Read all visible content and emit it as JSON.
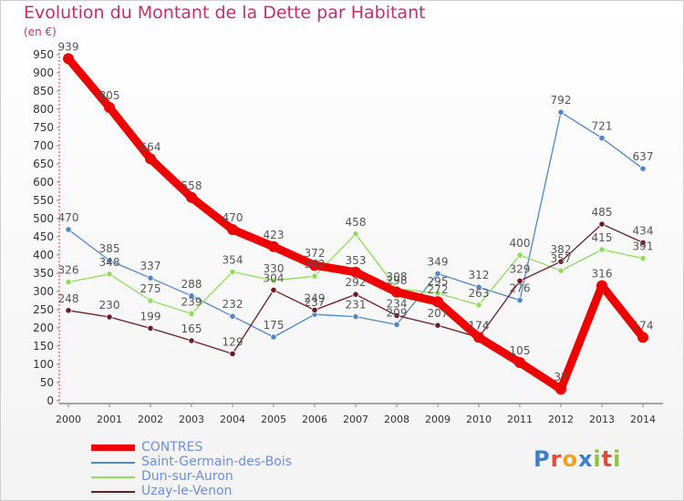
{
  "title": "Evolution du Montant de la Dette par Habitant",
  "unit_label": "(en €)",
  "logo_text": "Proxiti",
  "chart_data": {
    "type": "line",
    "title": "Evolution du Montant de la Dette par Habitant",
    "ylabel": "(en €)",
    "xlabel": "",
    "ylim": [
      0,
      950
    ],
    "grid": false,
    "legend_position": "bottom-left",
    "x": [
      "2000",
      "2001",
      "2002",
      "2003",
      "2004",
      "2005",
      "2006",
      "2007",
      "2008",
      "2009",
      "2010",
      "2011",
      "2012",
      "2013",
      "2014"
    ],
    "y_ticks": [
      "0",
      "50",
      "100",
      "150",
      "200",
      "250",
      "300",
      "350",
      "400",
      "450",
      "500",
      "550",
      "600",
      "650",
      "700",
      "750",
      "800",
      "850",
      "900",
      "950"
    ],
    "series": [
      {
        "name": "CONTRES",
        "color": "#ee0000",
        "values": [
          939,
          805,
          664,
          558,
          470,
          423,
          372,
          353,
          298,
          272,
          174,
          105,
          32,
          316,
          174
        ],
        "labels": [
          "939",
          "805",
          "664",
          "558",
          "470",
          "423",
          "372",
          "353",
          "298",
          "272",
          "174",
          "105",
          "32",
          "316",
          "174"
        ]
      },
      {
        "name": "Saint-Germain-des-Bois",
        "color": "#4f87c8",
        "values": [
          470,
          385,
          337,
          288,
          232,
          175,
          237,
          231,
          209,
          349,
          312,
          276,
          792,
          721,
          637
        ],
        "labels": [
          "470",
          "385",
          "337",
          "288",
          "232",
          "175",
          "237",
          "231",
          "209",
          "349",
          "312",
          "276",
          "792",
          "721",
          "637"
        ]
      },
      {
        "name": "Dun-sur-Auron",
        "color": "#8fdc5a",
        "values": [
          326,
          348,
          275,
          239,
          354,
          330,
          342,
          458,
          308,
          295,
          263,
          400,
          357,
          415,
          391
        ],
        "labels": [
          "326",
          "348",
          "275",
          "239",
          "354",
          "330",
          "342",
          "458",
          "308",
          "295",
          "263",
          "400",
          "357",
          "415",
          "391"
        ]
      },
      {
        "name": "Uzay-le-Venon",
        "color": "#6e1a24",
        "values": [
          248,
          230,
          199,
          165,
          129,
          304,
          249,
          292,
          234,
          207,
          174,
          329,
          382,
          485,
          434
        ],
        "labels": [
          "248",
          "230",
          "199",
          "165",
          "129",
          "304",
          "249",
          "292",
          "234",
          "207",
          "174",
          "329",
          "382",
          "485",
          "434"
        ]
      }
    ]
  }
}
